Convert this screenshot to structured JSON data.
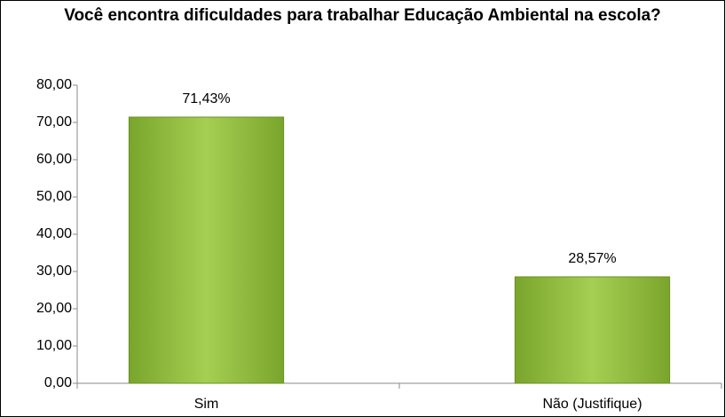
{
  "chart_data": {
    "type": "bar",
    "title": "Você encontra dificuldades para trabalhar Educação Ambiental na escola?",
    "categories": [
      "Sim",
      "Não (Justifique)"
    ],
    "values": [
      71.43,
      28.57
    ],
    "value_labels": [
      "71,43%",
      "28,57%"
    ],
    "color": "#8db83a",
    "ylim": [
      0,
      80
    ],
    "yticks": [
      {
        "value": 0,
        "label": "0,00"
      },
      {
        "value": 10,
        "label": "10,00"
      },
      {
        "value": 20,
        "label": "20,00"
      },
      {
        "value": 30,
        "label": "30,00"
      },
      {
        "value": 40,
        "label": "40,00"
      },
      {
        "value": 50,
        "label": "50,00"
      },
      {
        "value": 60,
        "label": "60,00"
      },
      {
        "value": 70,
        "label": "70,00"
      },
      {
        "value": 80,
        "label": "80,00"
      }
    ],
    "grid": false
  }
}
